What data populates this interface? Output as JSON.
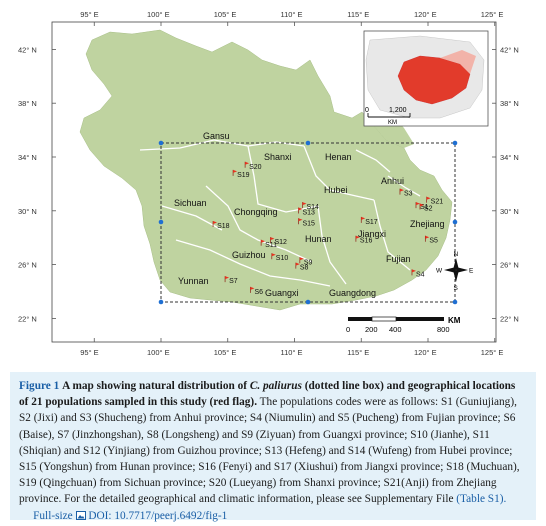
{
  "map": {
    "lon_ticks": [
      "95° E",
      "100° E",
      "105° E",
      "110° E",
      "115° E",
      "120° E",
      "125° E"
    ],
    "lat_ticks": [
      "42° N",
      "38° N",
      "34° N",
      "30° N",
      "26° N",
      "22° N"
    ],
    "provinces": [
      "Gansu",
      "Shanxi",
      "Henan",
      "Anhui",
      "Hubei",
      "Sichuan",
      "Chongqing",
      "Zhejiang",
      "Jiangxi",
      "Hunan",
      "Guizhou",
      "Fujian",
      "Yunnan",
      "Guangxi",
      "Guangdong"
    ],
    "sites": [
      {
        "id": "S1",
        "lon": 119.1,
        "lat": 30.2
      },
      {
        "id": "S2",
        "lon": 119.4,
        "lat": 30.1
      },
      {
        "id": "S3",
        "lon": 117.9,
        "lat": 31.2
      },
      {
        "id": "S4",
        "lon": 118.8,
        "lat": 25.2
      },
      {
        "id": "S5",
        "lon": 119.8,
        "lat": 27.7
      },
      {
        "id": "S6",
        "lon": 106.7,
        "lat": 23.9
      },
      {
        "id": "S7",
        "lon": 104.8,
        "lat": 24.7
      },
      {
        "id": "S8",
        "lon": 110.1,
        "lat": 25.7
      },
      {
        "id": "S9",
        "lon": 110.4,
        "lat": 26.1
      },
      {
        "id": "S10",
        "lon": 108.3,
        "lat": 26.4
      },
      {
        "id": "S11",
        "lon": 107.5,
        "lat": 27.4
      },
      {
        "id": "S12",
        "lon": 108.2,
        "lat": 27.6
      },
      {
        "id": "S13",
        "lon": 110.3,
        "lat": 29.8
      },
      {
        "id": "S14",
        "lon": 110.6,
        "lat": 30.2
      },
      {
        "id": "S15",
        "lon": 110.3,
        "lat": 29.0
      },
      {
        "id": "S16",
        "lon": 114.6,
        "lat": 27.7
      },
      {
        "id": "S17",
        "lon": 115.0,
        "lat": 29.1
      },
      {
        "id": "S18",
        "lon": 103.9,
        "lat": 28.8
      },
      {
        "id": "S19",
        "lon": 105.4,
        "lat": 32.6
      },
      {
        "id": "S20",
        "lon": 106.3,
        "lat": 33.2
      },
      {
        "id": "S21",
        "lon": 119.9,
        "lat": 30.6
      }
    ],
    "scale_ticks": [
      "0",
      "200",
      "400",
      "800"
    ],
    "scale_unit": "KM",
    "inset_scale_ticks": [
      "0",
      "1,200"
    ],
    "inset_scale_unit": "KM",
    "compass": {
      "n": "N",
      "s": "S",
      "e": "E",
      "w": "W"
    },
    "colors": {
      "land": "#bfd3a0",
      "border": "#ffffff",
      "flag": "#e8321f",
      "box": "#333333",
      "grid": "#8a8a8a"
    }
  },
  "caption": {
    "figure_label": "Figure 1",
    "title_a": "A map showing natural distribution of ",
    "species": "C. paliurus",
    "title_b": " (dotted line box) and geographical locations of 21 populations sampled in this study (red flag).",
    "body": "The populations codes were as follows: S1 (Guniujiang), S2 (Jixi) and S3 (Shucheng) from Anhui province; S4 (Niumulin) and S5 (Pucheng) from Fujian province; S6 (Baise), S7 (Jinzhongshan), S8 (Longsheng) and S9 (Ziyuan) from Guangxi province; S10 (Jianhe), S11 (Shiqian) and S12 (Yinjiang) from Guizhou province; S13 (Hefeng) and S14 (Wufeng) from Hubei province; S15 (Yongshun) from Hunan province; S16 (Fenyi) and S17 (Xiushui) from Jiangxi province; S18 (Muchuan), S19 (Qingchuan) from Sichuan province; S20 (Lueyang) from Shanxi province; S21(Anji) from Zhejiang province. For the detailed geographical and climatic information, please see Supplementary File ",
    "table_link": "(Table S1).",
    "fullsize_link": "Full-size",
    "doi_link": "DOI: 10.7717/peerj.6492/fig-1"
  }
}
